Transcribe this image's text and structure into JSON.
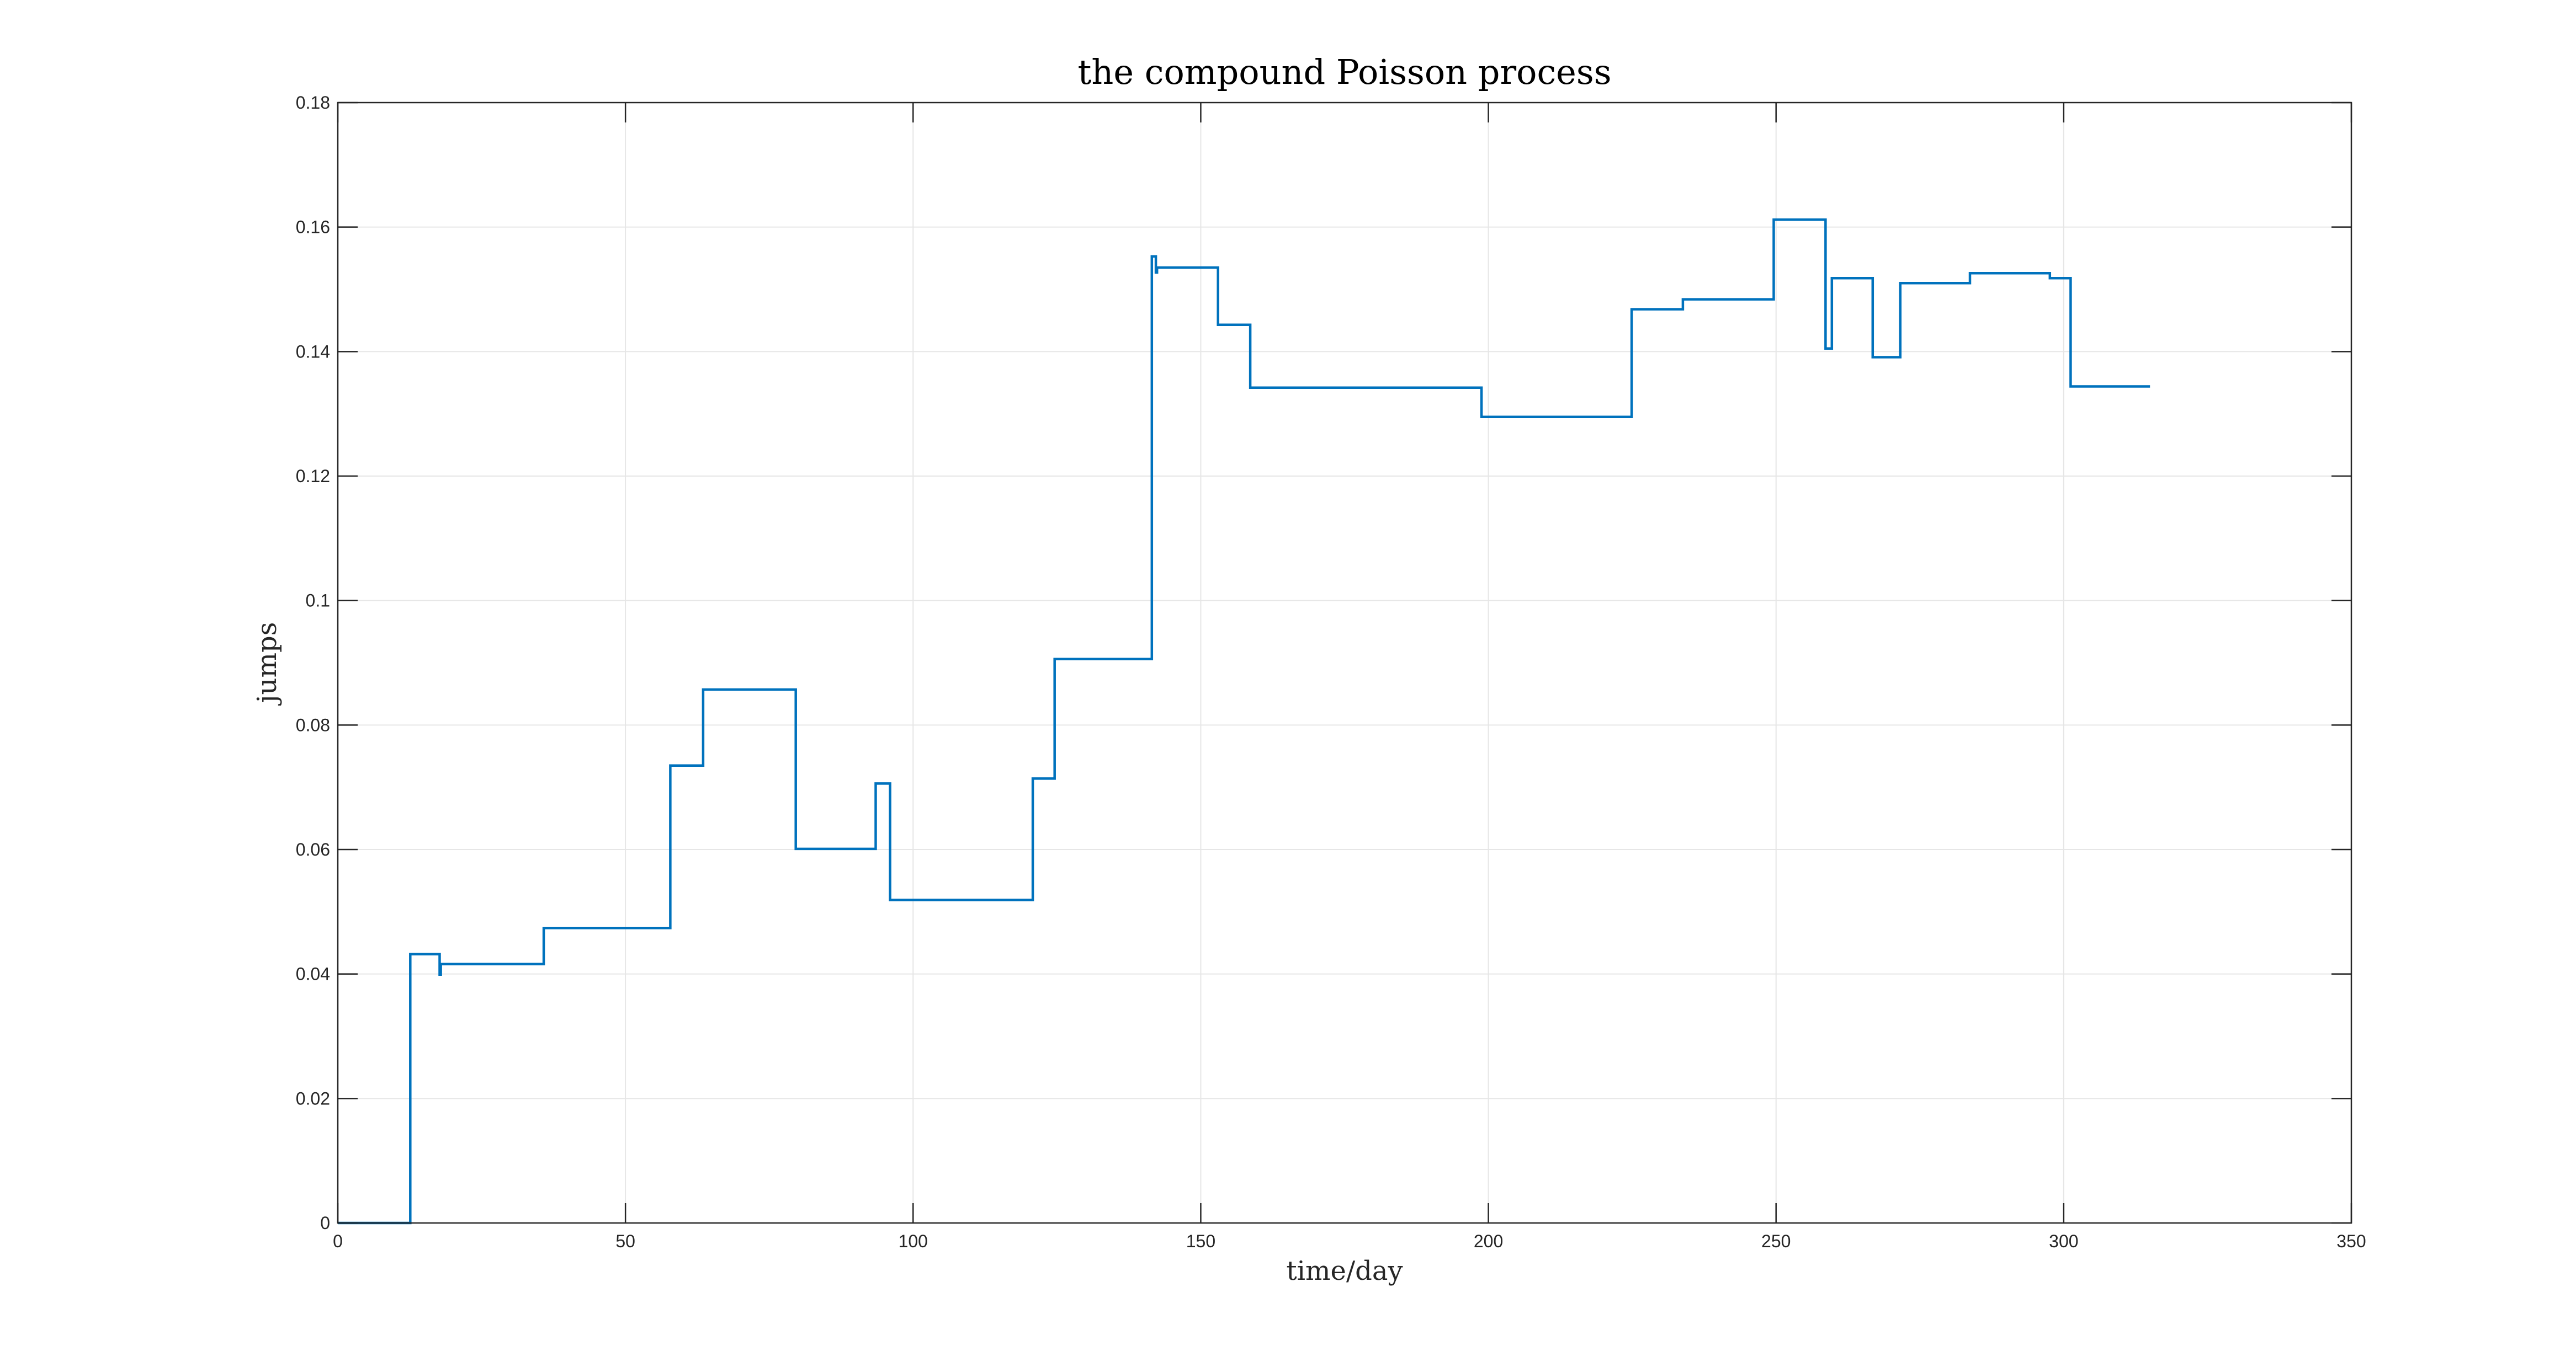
{
  "chart_data": {
    "type": "line",
    "title": "the compound Poisson process",
    "xlabel": "time/day",
    "ylabel": "jumps",
    "xlim": [
      0,
      350
    ],
    "ylim": [
      0,
      0.18
    ],
    "xticks": [
      0,
      50,
      100,
      150,
      200,
      250,
      300,
      350
    ],
    "xtick_labels": [
      "0",
      "50",
      "100",
      "150",
      "200",
      "250",
      "300",
      "350"
    ],
    "yticks": [
      0,
      0.02,
      0.04,
      0.06,
      0.08,
      0.1,
      0.12,
      0.14,
      0.16,
      0.18
    ],
    "ytick_labels": [
      "0",
      "0.02",
      "0.04",
      "0.06",
      "0.08",
      "0.1",
      "0.12",
      "0.14",
      "0.16",
      "0.18"
    ],
    "grid": true,
    "series": [
      {
        "color": "#0072bd",
        "step": true,
        "x": [
          0,
          12.6,
          17.7,
          17.9,
          35.8,
          57.8,
          63.5,
          79.6,
          93.5,
          96.0,
          120.8,
          124.6,
          141.5,
          142.2,
          142.4,
          153.0,
          158.6,
          198.8,
          224.9,
          233.8,
          249.6,
          258.6,
          259.7,
          266.8,
          271.6,
          283.7,
          297.6,
          301.2,
          315.0
        ],
        "y": [
          0,
          0.0432,
          0.0399,
          0.0416,
          0.0474,
          0.0735,
          0.0857,
          0.0601,
          0.0706,
          0.0519,
          0.0714,
          0.0906,
          0.1553,
          0.1527,
          0.1535,
          0.1443,
          0.1342,
          0.1295,
          0.1468,
          0.1484,
          0.1612,
          0.1405,
          0.1518,
          0.1391,
          0.151,
          0.1526,
          0.1518,
          0.1344,
          0.1344
        ]
      }
    ]
  }
}
